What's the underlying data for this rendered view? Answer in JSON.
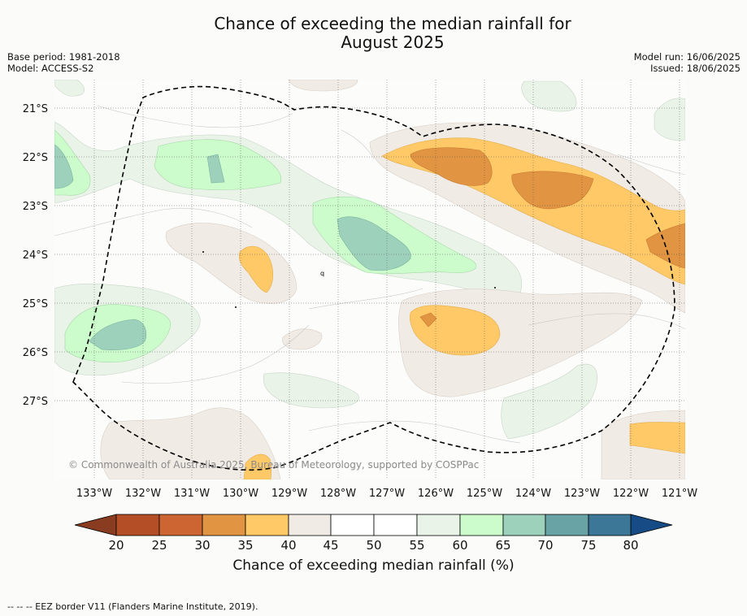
{
  "title": {
    "line1": "Chance of exceeding the median rainfall for",
    "line2": "August 2025"
  },
  "meta": {
    "base_period": "Base period: 1981-2018",
    "model": "Model: ACCESS-S2",
    "model_run": "Model run: 16/06/2025",
    "issued": "Issued: 18/06/2025"
  },
  "map": {
    "lat_labels": [
      "21°S",
      "22°S",
      "23°S",
      "24°S",
      "25°S",
      "26°S",
      "27°S"
    ],
    "lon_labels": [
      "133°W",
      "132°W",
      "131°W",
      "130°W",
      "129°W",
      "128°W",
      "127°W",
      "126°W",
      "125°W",
      "124°W",
      "123°W",
      "122°W",
      "121°W"
    ],
    "copyright": "© Commonwealth of Australia 2025, Bureau of Meteorology, supported by COSPPac",
    "marker_label": "q"
  },
  "colorbar": {
    "ticks": [
      "20",
      "25",
      "30",
      "35",
      "40",
      "45",
      "50",
      "55",
      "60",
      "65",
      "70",
      "75",
      "80"
    ],
    "colors": [
      "#b34e27",
      "#cc6531",
      "#e19442",
      "#fec966",
      "#f1ebe6",
      "#ffffff",
      "#ffffff",
      "#e9f3e8",
      "#ccfccc",
      "#9dd1bc",
      "#6aa3a6",
      "#3d7798"
    ],
    "under_color": "#8a3c21",
    "over_color": "#164b85",
    "label": "Chance of exceeding median rainfall (%)"
  },
  "footnote": "--  --  -- EEZ border V11 (Flanders Marine Institute, 2019)."
}
